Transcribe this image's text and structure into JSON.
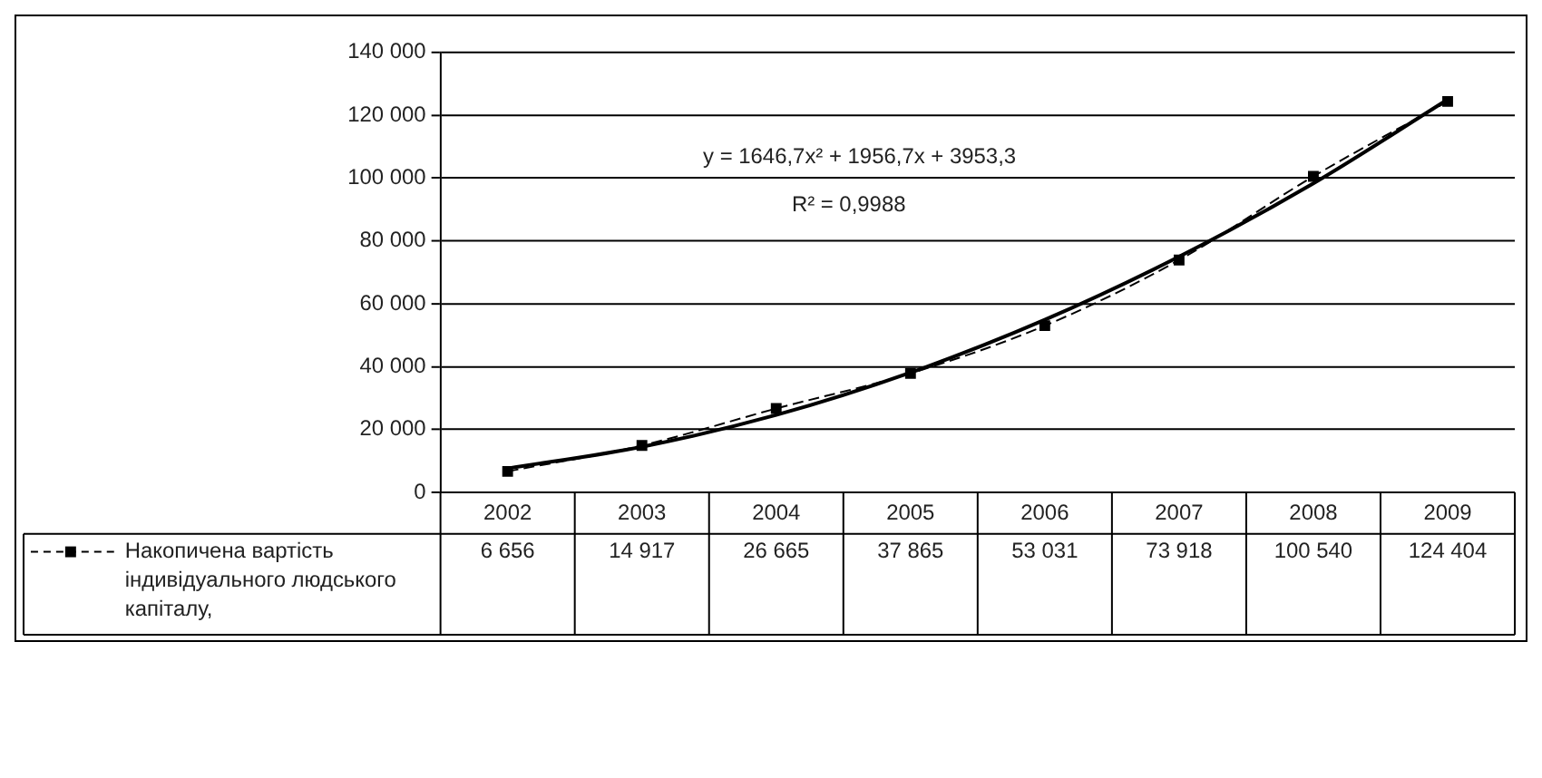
{
  "chart_data": {
    "type": "line",
    "categories": [
      "2002",
      "2003",
      "2004",
      "2005",
      "2006",
      "2007",
      "2008",
      "2009"
    ],
    "series": [
      {
        "name": "Накопичена вартість індивідуального людського капіталу,",
        "color": "#000000",
        "values": [
          6656,
          14917,
          26665,
          37865,
          53031,
          73918,
          100540,
          124404
        ],
        "value_labels": [
          "6 656",
          "14 917",
          "26 665",
          "37 865",
          "53 031",
          "73 918",
          "100 540",
          "124 404"
        ],
        "marker": "square",
        "line_style": "dashed"
      },
      {
        "color": "#000000",
        "values": [
          7600,
          14500,
          24600,
          38100,
          54900,
          75000,
          98300,
          125000
        ],
        "marker": "none",
        "line_style": "solid"
      }
    ],
    "ylim": [
      0,
      140000
    ],
    "yticks": [
      0,
      {
        "value": 20000,
        "label": "20 000"
      },
      {
        "value": 40000,
        "label": "40 000"
      },
      {
        "value": 60000,
        "label": "60 000"
      },
      {
        "value": 80000,
        "label": "80 000"
      },
      {
        "value": 100000,
        "label": "100 000"
      },
      {
        "value": 120000,
        "label": "120 000"
      },
      {
        "value": 140000,
        "label": "140 000"
      }
    ],
    "grid": "y",
    "legend": "bottom left",
    "annotations": [
      "y = 1646,7x² + 1956,7x + 3953,3",
      "R² = 0,9988"
    ]
  }
}
